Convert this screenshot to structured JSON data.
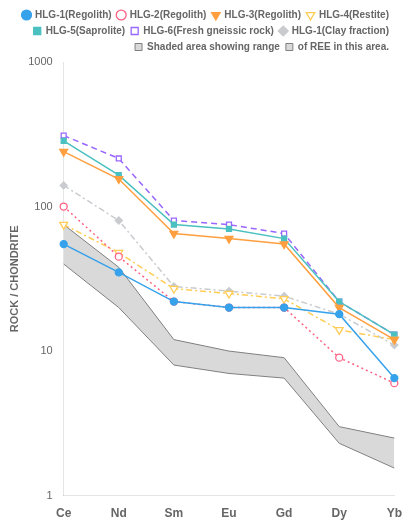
{
  "chart_data": {
    "type": "line",
    "categories": [
      "Ce",
      "Nd",
      "Sm",
      "Eu",
      "Gd",
      "Dy",
      "Yb"
    ],
    "ylabel": "ROCK / CHONDRITE",
    "log": "y",
    "ylim": [
      1,
      1000
    ],
    "yticks": [
      1,
      10,
      100,
      1000
    ],
    "grid": false,
    "legend": "upper right",
    "series": [
      {
        "name": "HLG-1(Regolith)",
        "values": [
          55,
          35,
          22,
          20,
          20,
          18,
          6.5
        ],
        "marker": "circle",
        "line_style": "solid"
      },
      {
        "name": "HLG-2(Regolith)",
        "values": [
          100,
          45,
          22,
          20,
          20,
          9,
          6
        ],
        "marker": "circle_open",
        "line_style": "dotted"
      },
      {
        "name": "HLG-3(Regolith)",
        "values": [
          240,
          155,
          65,
          60,
          55,
          20,
          12
        ],
        "marker": "triangle_down",
        "line_style": "solid"
      },
      {
        "name": "HLG-4(Restite)",
        "values": [
          75,
          48,
          27,
          25,
          23,
          14,
          12
        ],
        "marker": "triangle_down_open",
        "line_style": "dashdot"
      },
      {
        "name": "HLG-5(Saprolite)",
        "values": [
          285,
          165,
          75,
          70,
          60,
          22,
          13
        ],
        "marker": "square",
        "line_style": "solid"
      },
      {
        "name": "HLG-6(Fresh gneissic rock)",
        "values": [
          310,
          215,
          80,
          75,
          65,
          22,
          13
        ],
        "marker": "square_open",
        "line_style": "dashed"
      },
      {
        "name": "HLG-1(Clay fraction)",
        "values": [
          140,
          80,
          28,
          26,
          24,
          18,
          11
        ],
        "marker": "diamond",
        "line_style": "dashdot"
      },
      {
        "name": "Shaded area showing range",
        "type": "area",
        "color": "#808080",
        "values": [
          75,
          38,
          12,
          10,
          9,
          3.0,
          2.5
        ]
      },
      {
        "name": "of REE in this area.",
        "type": "area",
        "color": "#808080",
        "values": [
          40,
          20,
          8.0,
          7.0,
          6.5,
          2.3,
          1.55
        ]
      }
    ]
  }
}
